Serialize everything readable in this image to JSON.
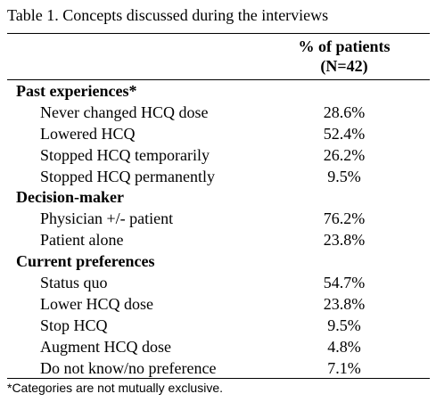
{
  "caption": "Table 1. Concepts discussed during the interviews",
  "header": {
    "col_line1": "% of patients",
    "col_line2": "(N=42)"
  },
  "rows": [
    {
      "label": "Past experiences*",
      "value": "",
      "section": true
    },
    {
      "label": "Never changed HCQ dose",
      "value": "28.6%",
      "section": false
    },
    {
      "label": "Lowered HCQ",
      "value": "52.4%",
      "section": false
    },
    {
      "label": "Stopped HCQ temporarily",
      "value": "26.2%",
      "section": false
    },
    {
      "label": "Stopped HCQ permanently",
      "value": "9.5%",
      "section": false
    },
    {
      "label": "Decision-maker",
      "value": "",
      "section": true
    },
    {
      "label": "Physician +/- patient",
      "value": "76.2%",
      "section": false
    },
    {
      "label": "Patient alone",
      "value": "23.8%",
      "section": false
    },
    {
      "label": "Current preferences",
      "value": "",
      "section": true
    },
    {
      "label": "Status quo",
      "value": "54.7%",
      "section": false
    },
    {
      "label": "Lower HCQ dose",
      "value": "23.8%",
      "section": false
    },
    {
      "label": "Stop HCQ",
      "value": "9.5%",
      "section": false
    },
    {
      "label": "Augment HCQ dose",
      "value": "4.8%",
      "section": false
    },
    {
      "label": "Do not know/no preference",
      "value": "7.1%",
      "section": false
    }
  ],
  "footnote": "*Categories are not mutually exclusive."
}
